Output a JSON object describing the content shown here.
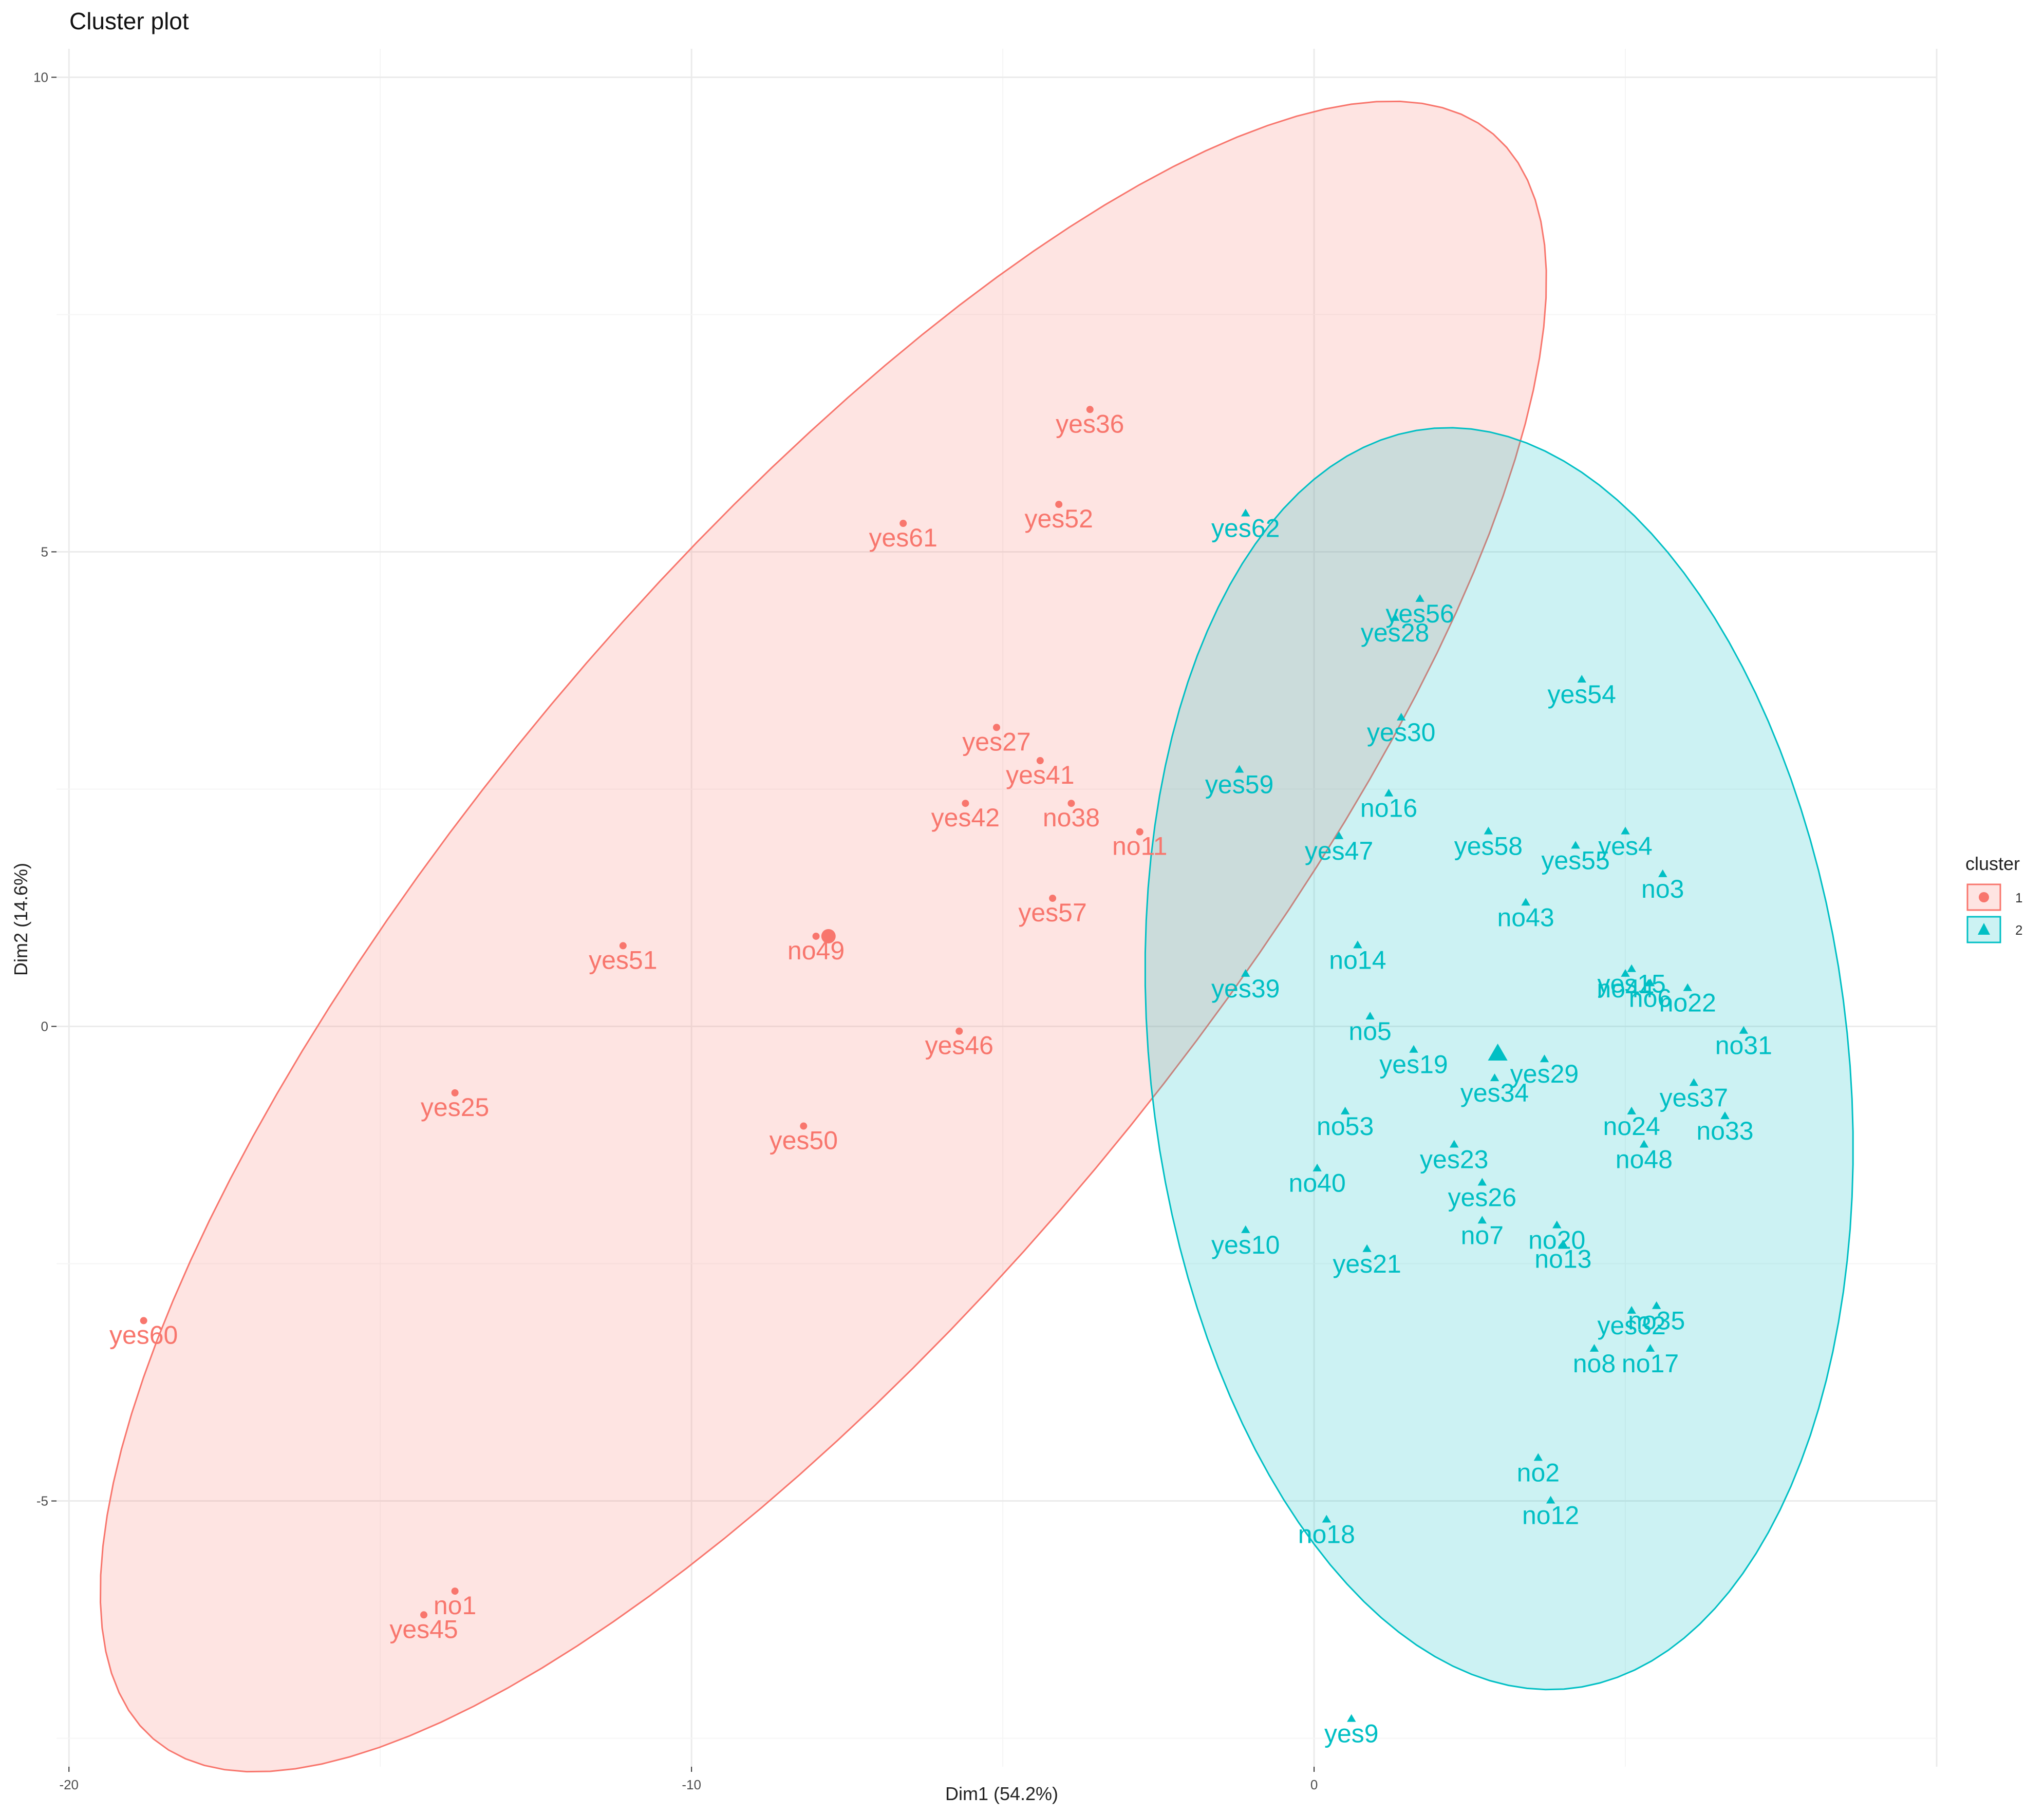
{
  "chart_data": {
    "type": "scatter",
    "title": "Cluster plot",
    "xlabel": "Dim1 (54.2%)",
    "ylabel": "Dim2 (14.6%)",
    "xlim": [
      -20.2,
      10
    ],
    "ylim": [
      -7.8,
      10.3
    ],
    "xticks": [
      -20,
      -10,
      0
    ],
    "yticks": [
      -5,
      0,
      5,
      10
    ],
    "grid": true,
    "legend": {
      "title": "cluster",
      "position": "right"
    },
    "colors": {
      "1": "#F8766D",
      "2": "#00BFC4"
    },
    "series": [
      {
        "name": "1",
        "shape": "circle",
        "centroid": [
          -7.8,
          0.95
        ],
        "points": [
          {
            "label": "yes36",
            "x": -3.6,
            "y": 6.5
          },
          {
            "label": "yes52",
            "x": -4.1,
            "y": 5.5
          },
          {
            "label": "yes61",
            "x": -6.6,
            "y": 5.3
          },
          {
            "label": "yes27",
            "x": -5.1,
            "y": 3.15
          },
          {
            "label": "yes41",
            "x": -4.4,
            "y": 2.8
          },
          {
            "label": "no38",
            "x": -3.9,
            "y": 2.35
          },
          {
            "label": "yes42",
            "x": -5.6,
            "y": 2.35
          },
          {
            "label": "no11",
            "x": -2.8,
            "y": 2.05
          },
          {
            "label": "yes57",
            "x": -4.2,
            "y": 1.35
          },
          {
            "label": "yes51",
            "x": -11.1,
            "y": 0.85
          },
          {
            "label": "no49",
            "x": -8.0,
            "y": 0.95
          },
          {
            "label": "yes46",
            "x": -5.7,
            "y": -0.05
          },
          {
            "label": "yes25",
            "x": -13.8,
            "y": -0.7
          },
          {
            "label": "yes50",
            "x": -8.2,
            "y": -1.05
          },
          {
            "label": "yes60",
            "x": -18.8,
            "y": -3.1
          },
          {
            "label": "no1",
            "x": -13.8,
            "y": -5.95
          },
          {
            "label": "yes45",
            "x": -14.3,
            "y": -6.2
          }
        ]
      },
      {
        "name": "2",
        "shape": "triangle",
        "centroid": [
          2.95,
          -0.3
        ],
        "points": [
          {
            "label": "yes62",
            "x": -1.1,
            "y": 5.4
          },
          {
            "label": "yes56",
            "x": 1.7,
            "y": 4.5
          },
          {
            "label": "yes28",
            "x": 1.3,
            "y": 4.3
          },
          {
            "label": "yes54",
            "x": 4.3,
            "y": 3.65
          },
          {
            "label": "yes30",
            "x": 1.4,
            "y": 3.25
          },
          {
            "label": "no16",
            "x": 1.2,
            "y": 2.45
          },
          {
            "label": "yes59",
            "x": -1.2,
            "y": 2.7
          },
          {
            "label": "yes58",
            "x": 2.8,
            "y": 2.05
          },
          {
            "label": "yes4",
            "x": 5.0,
            "y": 2.05
          },
          {
            "label": "yes47",
            "x": 0.4,
            "y": 2.0
          },
          {
            "label": "yes55",
            "x": 4.2,
            "y": 1.9
          },
          {
            "label": "no43",
            "x": 3.4,
            "y": 1.3
          },
          {
            "label": "no3",
            "x": 5.6,
            "y": 1.6
          },
          {
            "label": "no14",
            "x": 0.7,
            "y": 0.85
          },
          {
            "label": "yes39",
            "x": -1.1,
            "y": 0.55
          },
          {
            "label": "yes15",
            "x": 5.1,
            "y": 0.6
          },
          {
            "label": "no44",
            "x": 5.0,
            "y": 0.55
          },
          {
            "label": "no22",
            "x": 6.0,
            "y": 0.4
          },
          {
            "label": "no6",
            "x": 5.4,
            "y": 0.45
          },
          {
            "label": "no5",
            "x": 0.9,
            "y": 0.1
          },
          {
            "label": "no31",
            "x": 6.9,
            "y": -0.05
          },
          {
            "label": "yes19",
            "x": 1.6,
            "y": -0.25
          },
          {
            "label": "yes29",
            "x": 3.7,
            "y": -0.35
          },
          {
            "label": "yes37",
            "x": 6.1,
            "y": -0.6
          },
          {
            "label": "yes34",
            "x": 2.9,
            "y": -0.55
          },
          {
            "label": "no53",
            "x": 0.5,
            "y": -0.9
          },
          {
            "label": "no33",
            "x": 6.6,
            "y": -0.95
          },
          {
            "label": "no24",
            "x": 5.1,
            "y": -0.9
          },
          {
            "label": "yes23",
            "x": 2.25,
            "y": -1.25
          },
          {
            "label": "no48",
            "x": 5.3,
            "y": -1.25
          },
          {
            "label": "no40",
            "x": 0.05,
            "y": -1.5
          },
          {
            "label": "yes26",
            "x": 2.7,
            "y": -1.65
          },
          {
            "label": "no20",
            "x": 3.9,
            "y": -2.1
          },
          {
            "label": "yes10",
            "x": -1.1,
            "y": -2.15
          },
          {
            "label": "yes21",
            "x": 0.85,
            "y": -2.35
          },
          {
            "label": "no7",
            "x": 2.7,
            "y": -2.05
          },
          {
            "label": "no13",
            "x": 4.0,
            "y": -2.3
          },
          {
            "label": "no35",
            "x": 5.5,
            "y": -2.95
          },
          {
            "label": "yes32",
            "x": 5.1,
            "y": -3.0
          },
          {
            "label": "no8",
            "x": 4.5,
            "y": -3.4
          },
          {
            "label": "no17",
            "x": 5.4,
            "y": -3.4
          },
          {
            "label": "no2",
            "x": 3.6,
            "y": -4.55
          },
          {
            "label": "no12",
            "x": 3.8,
            "y": -5.0
          },
          {
            "label": "no18",
            "x": 0.2,
            "y": -5.2
          },
          {
            "label": "yes9",
            "x": 0.6,
            "y": -7.3
          }
        ]
      }
    ]
  }
}
